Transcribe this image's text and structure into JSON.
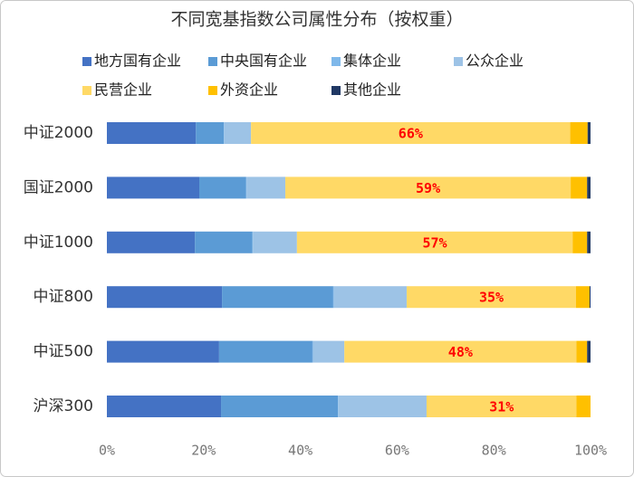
{
  "chart_data": {
    "type": "stacked-bar-horizontal",
    "title": "不同宽基指数公司属性分布（按权重）",
    "categories": [
      "中证2000",
      "国证2000",
      "中证1000",
      "中证800",
      "中证500",
      "沪深300"
    ],
    "series": [
      {
        "name": "地方国有企业",
        "color": "#4472c4",
        "values": [
          18.4,
          19.1,
          18.2,
          23.8,
          23.2,
          23.6
        ]
      },
      {
        "name": "中央国有企业",
        "color": "#5b9bd5",
        "values": [
          5.8,
          9.7,
          11.9,
          23.0,
          19.3,
          24.2
        ]
      },
      {
        "name": "集体企业",
        "color": "#7fb8ea",
        "values": [
          0.1,
          0.1,
          0.1,
          0.1,
          0.1,
          0.1
        ]
      },
      {
        "name": "公众企业",
        "color": "#9dc3e6",
        "values": [
          5.5,
          8.0,
          9.1,
          15.1,
          6.5,
          18.2
        ]
      },
      {
        "name": "民营企业",
        "color": "#ffd966",
        "values": [
          66,
          59,
          57,
          35,
          48,
          31
        ],
        "value_labels": [
          "66%",
          "59%",
          "57%",
          "35%",
          "48%",
          "31%"
        ]
      },
      {
        "name": "外资企业",
        "color": "#ffc000",
        "values": [
          3.6,
          3.4,
          3.0,
          2.8,
          2.2,
          2.9
        ]
      },
      {
        "name": "其他企业",
        "color": "#203864",
        "values": [
          0.6,
          0.7,
          0.7,
          0.2,
          0.7,
          0
        ]
      }
    ],
    "xlim": [
      0,
      100
    ],
    "xticks": [
      {
        "value": 0,
        "label": "0%"
      },
      {
        "value": 20,
        "label": "20%"
      },
      {
        "value": 40,
        "label": "40%"
      },
      {
        "value": 60,
        "label": "60%"
      },
      {
        "value": 80,
        "label": "80%"
      },
      {
        "value": 100,
        "label": "100%"
      }
    ],
    "legend": "top"
  }
}
